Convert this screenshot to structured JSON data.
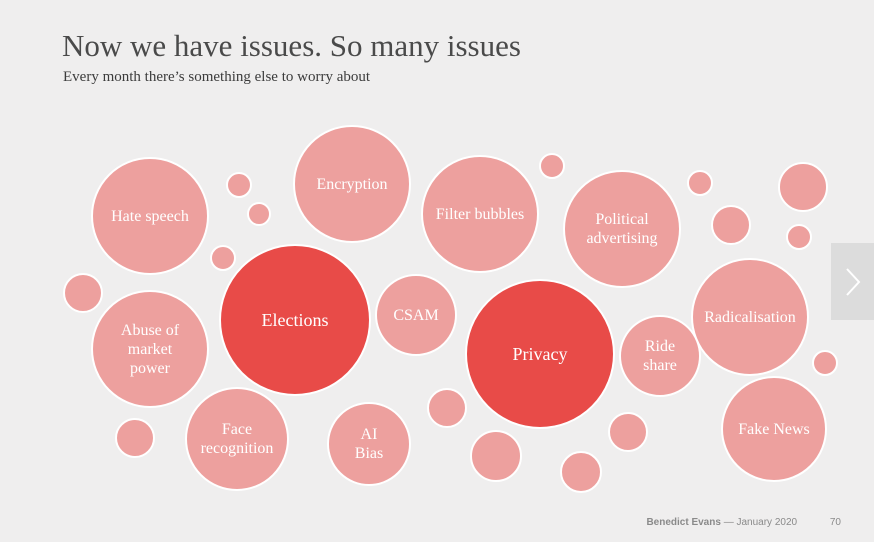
{
  "slide": {
    "title": "Now we have issues. So many issues",
    "subtitle": "Every month there’s something else to worry about"
  },
  "bubbles": [
    {
      "label": "Hate speech",
      "highlight": false
    },
    {
      "label": "Encryption",
      "highlight": false
    },
    {
      "label": "Filter bubbles",
      "highlight": false
    },
    {
      "label": "Political\nadvertising",
      "highlight": false
    },
    {
      "label": "Elections",
      "highlight": true
    },
    {
      "label": "CSAM",
      "highlight": false
    },
    {
      "label": "Privacy",
      "highlight": true
    },
    {
      "label": "Radicalisation",
      "highlight": false
    },
    {
      "label": "Abuse of\nmarket\npower",
      "highlight": false
    },
    {
      "label": "Ride\nshare",
      "highlight": false
    },
    {
      "label": "Face\nrecognition",
      "highlight": false
    },
    {
      "label": "AI\nBias",
      "highlight": false
    },
    {
      "label": "Fake News",
      "highlight": false
    }
  ],
  "footer": {
    "author": "Benedict Evans",
    "date": "— January 2020",
    "page": "70"
  },
  "colors": {
    "bubble": "#eda09e",
    "bubble_highlight": "#e84b48",
    "background": "#efeeee"
  },
  "navigation": {
    "next_icon": "chevron-right-icon"
  }
}
